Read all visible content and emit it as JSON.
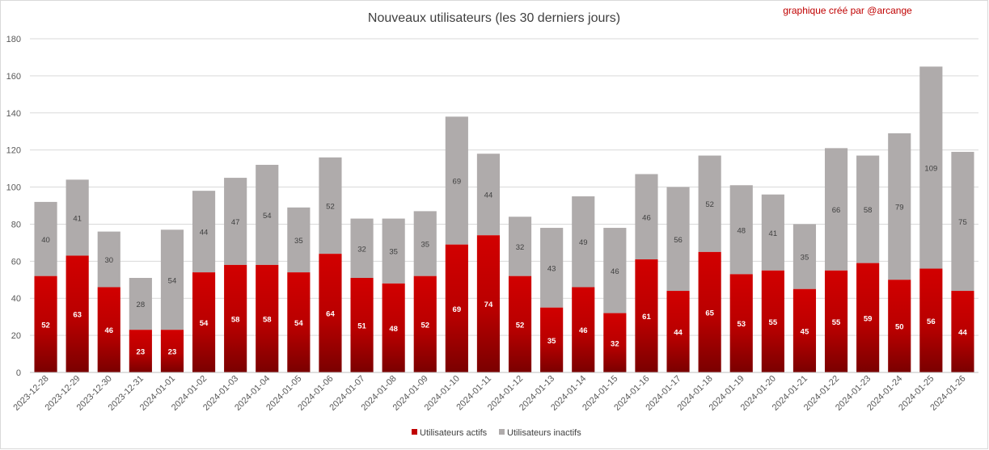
{
  "chart_data": {
    "type": "bar",
    "stacked": true,
    "title": "Nouveaux utilisateurs  (les 30 derniers  jours)",
    "credit": "graphique créé par @arcange",
    "xlabel": "",
    "ylabel": "",
    "ylim": [
      0,
      180
    ],
    "yticks": [
      0,
      20,
      40,
      60,
      80,
      100,
      120,
      140,
      160,
      180
    ],
    "grid": true,
    "legend_position": "bottom",
    "categories": [
      "2023-12-28",
      "2023-12-29",
      "2023-12-30",
      "2023-12-31",
      "2024-01-01",
      "2024-01-02",
      "2024-01-03",
      "2024-01-04",
      "2024-01-05",
      "2024-01-06",
      "2024-01-07",
      "2024-01-08",
      "2024-01-09",
      "2024-01-10",
      "2024-01-11",
      "2024-01-12",
      "2024-01-13",
      "2024-01-14",
      "2024-01-15",
      "2024-01-16",
      "2024-01-17",
      "2024-01-18",
      "2024-01-19",
      "2024-01-20",
      "2024-01-21",
      "2024-01-22",
      "2024-01-23",
      "2024-01-24",
      "2024-01-25",
      "2024-01-26"
    ],
    "series": [
      {
        "name": "Utilisateurs actifs",
        "color": "#c00000",
        "values": [
          52,
          63,
          46,
          23,
          23,
          54,
          58,
          58,
          54,
          64,
          51,
          48,
          52,
          69,
          74,
          52,
          35,
          46,
          32,
          61,
          44,
          65,
          53,
          55,
          45,
          55,
          59,
          50,
          56,
          44
        ]
      },
      {
        "name": "Utilisateurs inactifs",
        "color": "#afabab",
        "values": [
          40,
          41,
          30,
          28,
          54,
          44,
          47,
          54,
          35,
          52,
          32,
          35,
          35,
          69,
          44,
          32,
          43,
          49,
          46,
          46,
          56,
          52,
          48,
          41,
          35,
          66,
          58,
          79,
          109,
          75
        ]
      }
    ]
  }
}
